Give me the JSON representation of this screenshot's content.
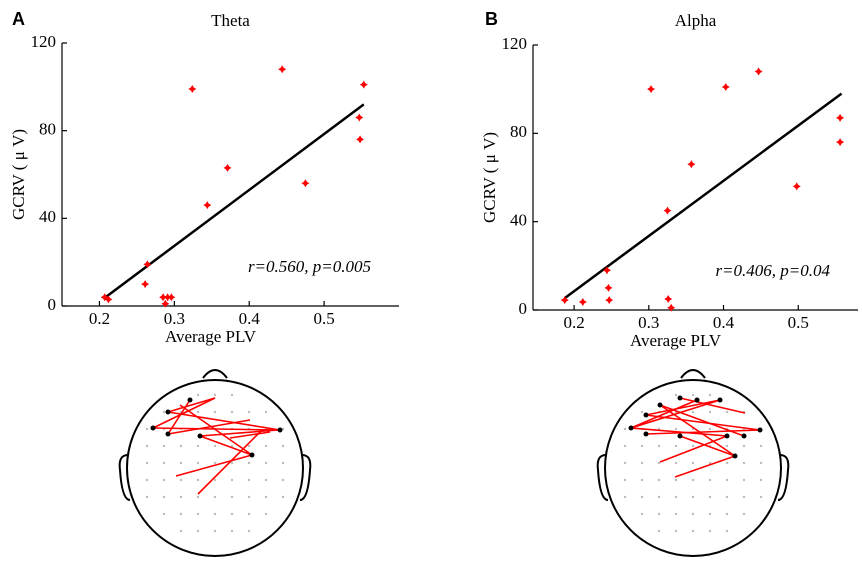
{
  "chart_data": [
    {
      "type": "scatter",
      "panel": "A",
      "title": "Theta",
      "x_label": "Average PLV",
      "y_label": "GCRV ( μ V)",
      "annotation": "r=0.560, p=0.005",
      "color": "#ff0000",
      "x": [
        0.207,
        0.212,
        0.264,
        0.261,
        0.285,
        0.288,
        0.291,
        0.296,
        0.324,
        0.344,
        0.371,
        0.444,
        0.475,
        0.547,
        0.548,
        0.553
      ],
      "values": [
        4,
        3,
        19,
        10,
        4,
        1,
        4,
        4,
        99,
        46,
        63,
        108,
        56,
        86,
        76,
        101
      ],
      "fit": {
        "x": [
          0.207,
          0.553
        ],
        "y": [
          3.7,
          92
        ]
      },
      "xlim": [
        0.15,
        0.6
      ],
      "ylim": [
        0,
        120
      ],
      "xticks": [
        0.2,
        0.3,
        0.4,
        0.5
      ],
      "yticks": [
        0,
        40,
        80,
        120
      ]
    },
    {
      "type": "scatter",
      "panel": "B",
      "title": "Alpha",
      "x_label": "Average PLV",
      "y_label": "GCRV ( μ V)",
      "annotation": "r=0.406, p=0.04",
      "color": "#ff0000",
      "x": [
        0.1875,
        0.2117,
        0.244,
        0.246,
        0.247,
        0.303,
        0.325,
        0.326,
        0.33,
        0.357,
        0.403,
        0.447,
        0.498,
        0.556,
        0.556
      ],
      "values": [
        4.5,
        3.6,
        18,
        10,
        4.5,
        100,
        45,
        5,
        1,
        66,
        101,
        108,
        56,
        87,
        76
      ],
      "fit": {
        "x": [
          0.1875,
          0.558
        ],
        "y": [
          5.4,
          98
        ]
      },
      "xlim": [
        0.145,
        0.58
      ],
      "ylim": [
        0,
        120
      ],
      "xticks": [
        0.2,
        0.3,
        0.4,
        0.5
      ],
      "yticks": [
        0,
        40,
        80,
        120
      ]
    }
  ]
}
